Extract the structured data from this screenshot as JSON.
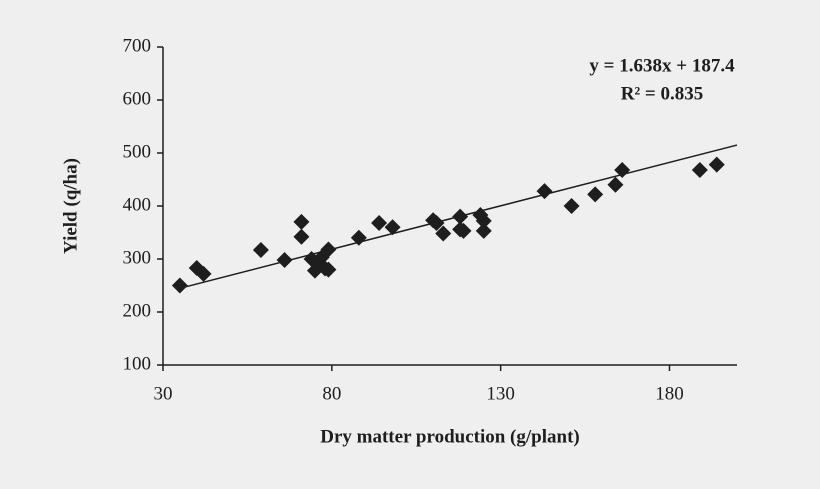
{
  "chart_data": {
    "type": "scatter",
    "x_label": "Dry matter production (g/plant)",
    "y_label": "Yield (q/ha)",
    "annotations": [
      "y = 1.638x + 187.4",
      "R² = 0.835"
    ],
    "trendline": {
      "slope": 1.638,
      "intercept": 187.4,
      "r2": 0.835
    },
    "color": "#1e1e1e",
    "x": [
      35,
      40,
      42,
      59,
      66,
      71,
      71,
      74,
      75,
      76,
      77,
      78,
      79,
      79,
      88,
      94,
      98,
      110,
      111,
      113,
      118,
      118,
      119,
      124,
      125,
      125,
      143,
      151,
      158,
      164,
      166,
      189,
      194
    ],
    "values": [
      250,
      283,
      272,
      317,
      298,
      370,
      342,
      300,
      278,
      290,
      303,
      282,
      318,
      280,
      340,
      368,
      360,
      373,
      368,
      348,
      380,
      356,
      353,
      383,
      372,
      353,
      428,
      400,
      422,
      440,
      468,
      468,
      478
    ],
    "xlim": [
      30,
      200
    ],
    "xticks": [
      30,
      80,
      130,
      180
    ],
    "ylim": [
      100,
      700
    ],
    "yticks": [
      100,
      200,
      300,
      400,
      500,
      600,
      700
    ],
    "grid": false
  }
}
